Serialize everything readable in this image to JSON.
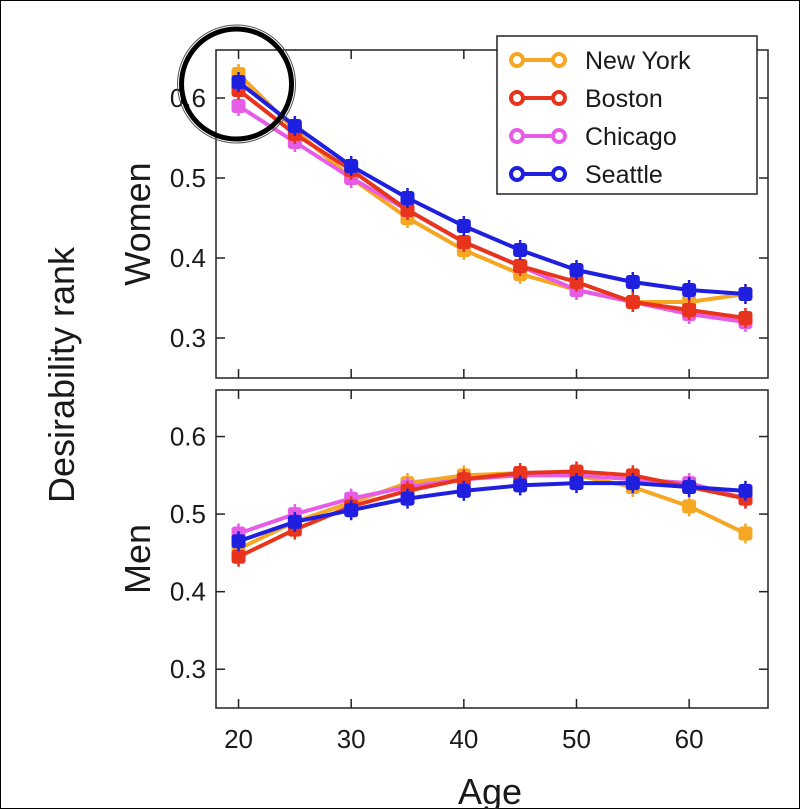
{
  "chart_data": {
    "type": "line",
    "ylabel": "Desirability rank",
    "xlabel": "Age",
    "x": [
      20,
      25,
      30,
      35,
      40,
      45,
      50,
      55,
      60,
      65
    ],
    "xlim": [
      18,
      67
    ],
    "x_ticks": [
      "20",
      "30",
      "40",
      "50",
      "60"
    ],
    "ylim": [
      0.25,
      0.66
    ],
    "y_ticks": [
      "0.3",
      "0.4",
      "0.5",
      "0.6"
    ],
    "legend": {
      "placement": "top-right",
      "panel": "Women"
    },
    "colors": {
      "New York": "#f5a623",
      "Boston": "#e8341c",
      "Chicago": "#e65ce6",
      "Seattle": "#1f1fe0"
    },
    "panels": [
      {
        "label": "Women",
        "series": [
          {
            "name": "New York",
            "values": [
              0.63,
              0.56,
              0.5,
              0.45,
              0.41,
              0.38,
              0.36,
              0.345,
              0.345,
              0.355
            ]
          },
          {
            "name": "Boston",
            "values": [
              0.61,
              0.555,
              0.51,
              0.46,
              0.42,
              0.39,
              0.37,
              0.345,
              0.335,
              0.325
            ]
          },
          {
            "name": "Chicago",
            "values": [
              0.59,
              0.545,
              0.5,
              0.46,
              0.42,
              0.39,
              0.36,
              0.345,
              0.33,
              0.32
            ]
          },
          {
            "name": "Seattle",
            "values": [
              0.62,
              0.565,
              0.515,
              0.475,
              0.44,
              0.41,
              0.385,
              0.37,
              0.36,
              0.355
            ]
          }
        ],
        "annotation": "circle around age 20 values"
      },
      {
        "label": "Men",
        "series": [
          {
            "name": "New York",
            "values": [
              0.455,
              0.49,
              0.515,
              0.54,
              0.55,
              0.553,
              0.55,
              0.535,
              0.51,
              0.475
            ]
          },
          {
            "name": "Boston",
            "values": [
              0.445,
              0.48,
              0.51,
              0.53,
              0.545,
              0.553,
              0.555,
              0.55,
              0.535,
              0.52
            ]
          },
          {
            "name": "Chicago",
            "values": [
              0.475,
              0.5,
              0.52,
              0.535,
              0.545,
              0.55,
              0.55,
              0.545,
              0.54,
              0.52
            ]
          },
          {
            "name": "Seattle",
            "values": [
              0.465,
              0.49,
              0.505,
              0.52,
              0.53,
              0.537,
              0.54,
              0.54,
              0.535,
              0.53
            ]
          }
        ]
      }
    ]
  }
}
